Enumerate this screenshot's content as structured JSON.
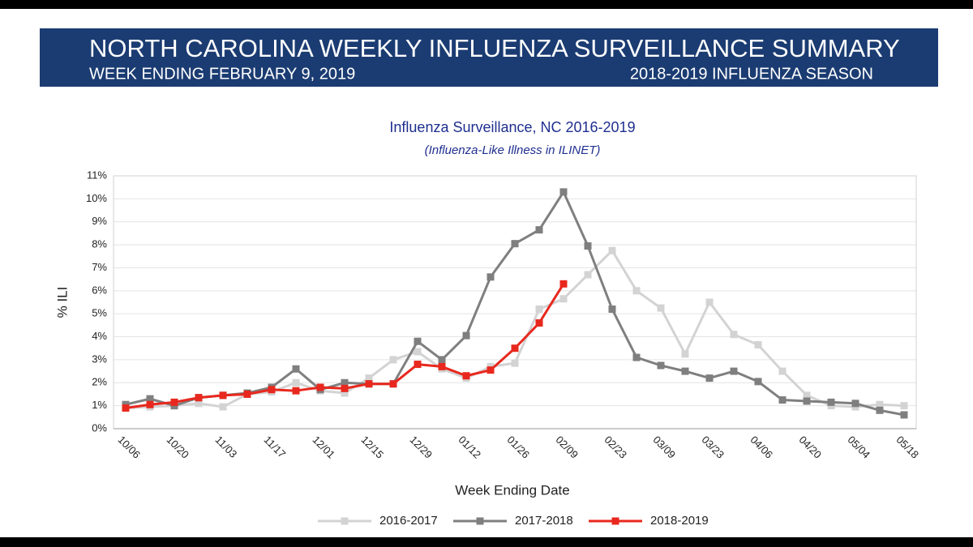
{
  "header": {
    "title": "NORTH CAROLINA WEEKLY INFLUENZA SURVEILLANCE SUMMARY",
    "subtitle_left": "WEEK ENDING FEBRUARY 9, 2019",
    "subtitle_right": "2018-2019 INFLUENZA SEASON"
  },
  "chart_data": {
    "type": "line",
    "title": "Influenza Surveillance, NC 2016-2019",
    "subtitle": "(Influenza-Like Illness in ILINET)",
    "x_label": "Week Ending Date",
    "y_label": "% ILI",
    "categories": [
      "10/06",
      null,
      "10/20",
      null,
      "11/03",
      null,
      "11/17",
      null,
      "12/01",
      null,
      "12/15",
      null,
      "12/29",
      null,
      "01/12",
      null,
      "01/26",
      null,
      "02/09",
      null,
      "02/23",
      null,
      "03/09",
      null,
      "03/23",
      null,
      "04/06",
      null,
      "04/20",
      null,
      "05/04",
      null,
      "05/18"
    ],
    "series": [
      {
        "name": "2016-2017",
        "color": "#d3d3d3",
        "values": [
          0.9,
          0.95,
          1.0,
          1.1,
          0.95,
          1.5,
          1.6,
          2.0,
          1.65,
          1.55,
          2.2,
          3.0,
          3.35,
          2.6,
          2.2,
          2.7,
          2.85,
          5.2,
          5.65,
          6.7,
          7.75,
          6.0,
          5.25,
          3.25,
          5.5,
          4.1,
          3.65,
          2.5,
          1.45,
          1.0,
          0.95,
          1.05,
          1.0
        ]
      },
      {
        "name": "2017-2018",
        "color": "#7f7f7f",
        "values": [
          1.05,
          1.3,
          1.0,
          1.35,
          1.45,
          1.55,
          1.8,
          2.6,
          1.7,
          2.0,
          1.95,
          1.95,
          3.8,
          3.0,
          4.05,
          6.6,
          8.05,
          8.65,
          10.3,
          7.95,
          5.2,
          3.1,
          2.75,
          2.5,
          2.2,
          2.5,
          2.05,
          1.25,
          1.2,
          1.15,
          1.1,
          0.8,
          0.6
        ]
      },
      {
        "name": "2018-2019",
        "color": "#e8281e",
        "values": [
          0.9,
          1.05,
          1.15,
          1.35,
          1.45,
          1.5,
          1.7,
          1.65,
          1.8,
          1.75,
          1.95,
          1.95,
          2.8,
          2.7,
          2.3,
          2.55,
          3.5,
          4.6,
          6.3,
          null,
          null,
          null,
          null,
          null,
          null,
          null,
          null,
          null,
          null,
          null,
          null,
          null,
          null
        ]
      }
    ],
    "ylim": [
      0,
      11
    ],
    "yticks": [
      {
        "value": 0,
        "label": "0%"
      },
      {
        "value": 1,
        "label": "1%"
      },
      {
        "value": 2,
        "label": "2%"
      },
      {
        "value": 3,
        "label": "3%"
      },
      {
        "value": 4,
        "label": "4%"
      },
      {
        "value": 5,
        "label": "5%"
      },
      {
        "value": 6,
        "label": "6%"
      },
      {
        "value": 7,
        "label": "7%"
      },
      {
        "value": 8,
        "label": "8%"
      },
      {
        "value": 9,
        "label": "9%"
      },
      {
        "value": 10,
        "label": "10%"
      },
      {
        "value": 11,
        "label": "11%"
      }
    ],
    "grid": true,
    "legend": "bottom"
  }
}
